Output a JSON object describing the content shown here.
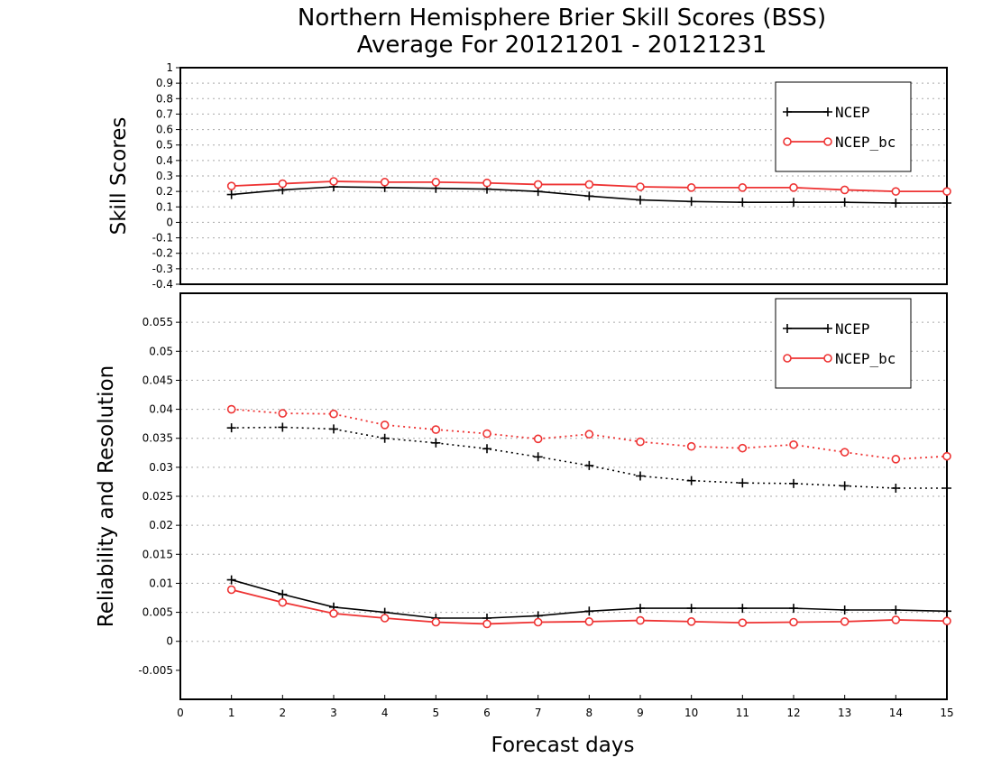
{
  "title_line1": "Northern Hemisphere  Brier Skill Scores (BSS)",
  "title_line2": "Average For 20121201 - 20121231",
  "xlabel": "Forecast days",
  "colors": {
    "ncep": "#000000",
    "ncep_bc": "#ee3333"
  },
  "chart_data": [
    {
      "type": "line",
      "ylabel": "Skill Scores",
      "xlim": [
        0,
        15
      ],
      "ylim": [
        -0.4,
        1
      ],
      "x_ticks": [
        0,
        1,
        2,
        3,
        4,
        5,
        6,
        7,
        8,
        9,
        10,
        11,
        12,
        13,
        14,
        15
      ],
      "y_ticks": [
        -0.4,
        -0.3,
        -0.2,
        -0.1,
        0,
        0.1,
        0.2,
        0.3,
        0.4,
        0.5,
        0.6,
        0.7,
        0.8,
        0.9,
        1
      ],
      "y_tick_labels": [
        "-0.4",
        "-0.3",
        "-0.2",
        "-0.1",
        "0",
        "0.1",
        "0.2",
        "0.3",
        "0.4",
        "0.5",
        "0.6",
        "0.7",
        "0.8",
        "0.9",
        "1"
      ],
      "grid": true,
      "legend_position": "top-right",
      "legend": [
        "NCEP",
        "NCEP_bc"
      ],
      "x": [
        1,
        2,
        3,
        4,
        5,
        6,
        7,
        8,
        9,
        10,
        11,
        12,
        13,
        14,
        15
      ],
      "series": [
        {
          "name": "NCEP",
          "color": "#000000",
          "marker": "plus",
          "dash": "solid",
          "values": [
            0.18,
            0.21,
            0.23,
            0.225,
            0.22,
            0.215,
            0.2,
            0.17,
            0.145,
            0.135,
            0.13,
            0.13,
            0.13,
            0.125,
            0.125
          ]
        },
        {
          "name": "NCEP_bc",
          "color": "#ee3333",
          "marker": "circle",
          "dash": "solid",
          "values": [
            0.235,
            0.25,
            0.265,
            0.26,
            0.26,
            0.255,
            0.245,
            0.245,
            0.23,
            0.225,
            0.225,
            0.225,
            0.21,
            0.2,
            0.2
          ]
        }
      ]
    },
    {
      "type": "line",
      "ylabel": "Reliability and Resolution",
      "xlim": [
        0,
        15
      ],
      "ylim": [
        -0.01,
        0.06
      ],
      "x_ticks": [
        0,
        1,
        2,
        3,
        4,
        5,
        6,
        7,
        8,
        9,
        10,
        11,
        12,
        13,
        14,
        15
      ],
      "y_ticks": [
        -0.005,
        0,
        0.005,
        0.01,
        0.015,
        0.02,
        0.025,
        0.03,
        0.035,
        0.04,
        0.045,
        0.05,
        0.055
      ],
      "y_tick_labels": [
        "-0.005",
        "0",
        "0.005",
        "0.01",
        "0.015",
        "0.02",
        "0.025",
        "0.03",
        "0.035",
        "0.04",
        "0.045",
        "0.05",
        "0.055"
      ],
      "grid": true,
      "legend_position": "top-right",
      "legend": [
        "NCEP",
        "NCEP_bc"
      ],
      "x": [
        1,
        2,
        3,
        4,
        5,
        6,
        7,
        8,
        9,
        10,
        11,
        12,
        13,
        14,
        15
      ],
      "series": [
        {
          "color": "#000000",
          "marker": "plus",
          "dash": "dotted",
          "values": [
            0.0368,
            0.0369,
            0.0366,
            0.035,
            0.0342,
            0.0332,
            0.0318,
            0.0303,
            0.0285,
            0.0277,
            0.0273,
            0.0272,
            0.0268,
            0.0264,
            0.0264
          ]
        },
        {
          "color": "#ee3333",
          "marker": "circle",
          "dash": "dotted",
          "values": [
            0.04,
            0.0393,
            0.0392,
            0.0373,
            0.0365,
            0.0358,
            0.0349,
            0.0357,
            0.0344,
            0.0336,
            0.0333,
            0.0339,
            0.0326,
            0.0314,
            0.0319
          ]
        },
        {
          "color": "#000000",
          "marker": "plus",
          "dash": "solid",
          "values": [
            0.0106,
            0.0081,
            0.0059,
            0.005,
            0.004,
            0.004,
            0.0044,
            0.0052,
            0.0057,
            0.0057,
            0.0057,
            0.0057,
            0.0054,
            0.0054,
            0.0052
          ]
        },
        {
          "color": "#ee3333",
          "marker": "circle",
          "dash": "solid",
          "values": [
            0.0089,
            0.0067,
            0.0048,
            0.004,
            0.0033,
            0.003,
            0.0033,
            0.0034,
            0.0036,
            0.0034,
            0.0032,
            0.0033,
            0.0034,
            0.0037,
            0.0035
          ]
        }
      ]
    }
  ]
}
